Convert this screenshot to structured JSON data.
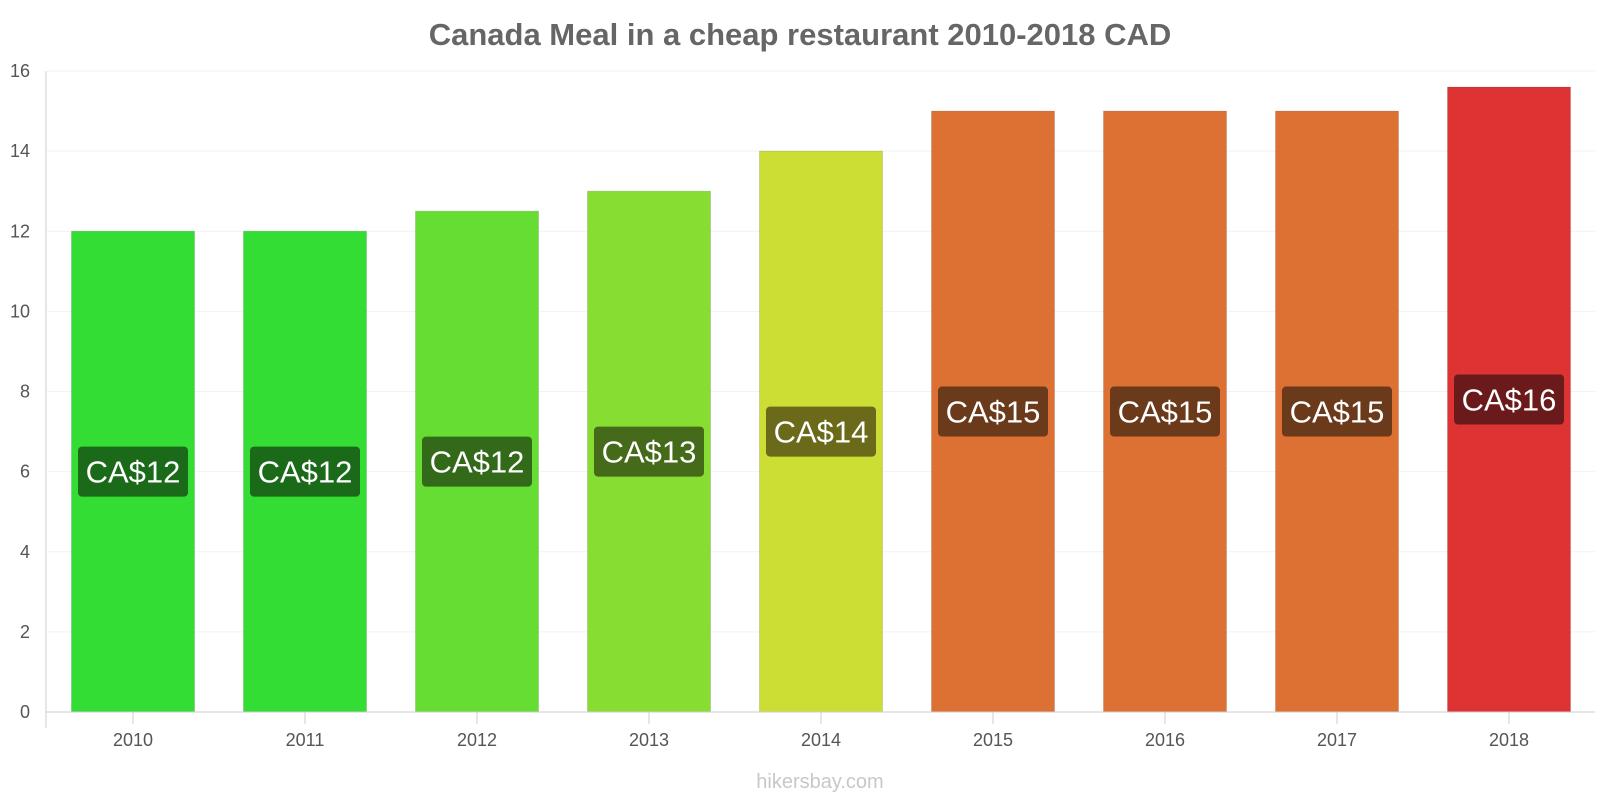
{
  "chart_data": {
    "type": "bar",
    "title": "Canada Meal in a cheap restaurant 2010-2018 CAD",
    "xlabel": "",
    "ylabel": "",
    "ylim": [
      0,
      16
    ],
    "yticks": [
      0,
      2,
      4,
      6,
      8,
      10,
      12,
      14,
      16
    ],
    "categories": [
      "2010",
      "2011",
      "2012",
      "2013",
      "2014",
      "2015",
      "2016",
      "2017",
      "2018"
    ],
    "values": [
      12,
      12,
      12.5,
      13,
      14,
      15,
      15,
      15,
      15.6
    ],
    "data_labels": [
      "CA$12",
      "CA$12",
      "CA$12",
      "CA$13",
      "CA$14",
      "CA$15",
      "CA$15",
      "CA$15",
      "CA$16"
    ],
    "bar_colors": [
      "#33dd33",
      "#33dd33",
      "#66dd33",
      "#88dd33",
      "#ccdd33",
      "#dd7033",
      "#dd7033",
      "#dd7033",
      "#dd3333"
    ],
    "label_bg_colors": [
      "#1a6a1a",
      "#1a6a1a",
      "#336a1a",
      "#446a1a",
      "#6a6a1a",
      "#6a3a1a",
      "#6a3a1a",
      "#6a3a1a",
      "#6a1a1a"
    ],
    "grid": true,
    "legend": "none"
  },
  "footer": {
    "source": "hikersbay.com"
  }
}
